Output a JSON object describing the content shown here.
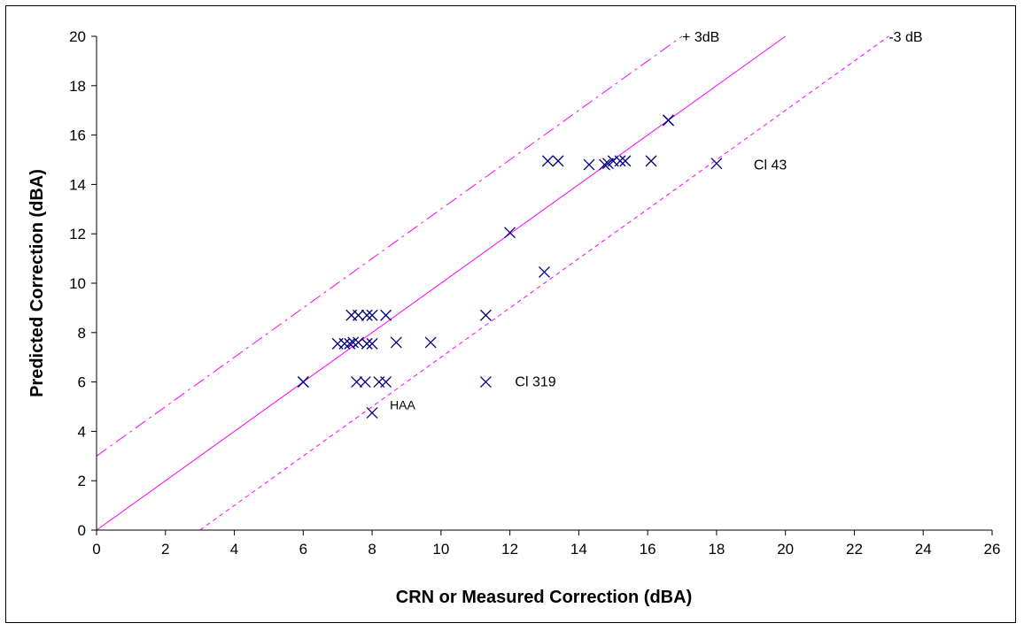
{
  "chart_data": {
    "type": "scatter",
    "title": "",
    "xlabel": "CRN or Measured Correction  (dBA)",
    "ylabel": "Predicted Correction  (dBA)",
    "xlim": [
      0,
      26
    ],
    "ylim": [
      0,
      20
    ],
    "xticks": [
      0,
      2,
      4,
      6,
      8,
      10,
      12,
      14,
      16,
      18,
      20,
      22,
      24,
      26
    ],
    "yticks": [
      0,
      2,
      4,
      6,
      8,
      10,
      12,
      14,
      16,
      18,
      20
    ],
    "grid": false,
    "legend": "none",
    "marker_color": "#000080",
    "line_color": "#ff00ff",
    "points": [
      {
        "x": 6.0,
        "y": 6.0
      },
      {
        "x": 6.0,
        "y": 6.0
      },
      {
        "x": 7.0,
        "y": 7.55
      },
      {
        "x": 7.2,
        "y": 7.55
      },
      {
        "x": 7.35,
        "y": 7.55
      },
      {
        "x": 7.45,
        "y": 7.6
      },
      {
        "x": 7.6,
        "y": 7.6
      },
      {
        "x": 7.85,
        "y": 7.55
      },
      {
        "x": 8.0,
        "y": 7.55
      },
      {
        "x": 8.7,
        "y": 7.6
      },
      {
        "x": 9.7,
        "y": 7.6
      },
      {
        "x": 7.4,
        "y": 8.7
      },
      {
        "x": 7.6,
        "y": 8.7
      },
      {
        "x": 7.85,
        "y": 8.7
      },
      {
        "x": 8.0,
        "y": 8.7
      },
      {
        "x": 8.4,
        "y": 8.7
      },
      {
        "x": 11.3,
        "y": 8.7
      },
      {
        "x": 7.55,
        "y": 6.0
      },
      {
        "x": 7.8,
        "y": 6.0
      },
      {
        "x": 8.2,
        "y": 6.0
      },
      {
        "x": 8.4,
        "y": 6.0
      },
      {
        "x": 11.3,
        "y": 6.0
      },
      {
        "x": 8.0,
        "y": 4.75
      },
      {
        "x": 12.0,
        "y": 12.05
      },
      {
        "x": 13.0,
        "y": 10.45
      },
      {
        "x": 13.1,
        "y": 14.95
      },
      {
        "x": 13.4,
        "y": 14.95
      },
      {
        "x": 14.3,
        "y": 14.8
      },
      {
        "x": 14.75,
        "y": 14.8
      },
      {
        "x": 14.85,
        "y": 14.85
      },
      {
        "x": 15.0,
        "y": 14.95
      },
      {
        "x": 15.2,
        "y": 14.95
      },
      {
        "x": 15.35,
        "y": 14.95
      },
      {
        "x": 16.1,
        "y": 14.95
      },
      {
        "x": 16.6,
        "y": 16.6
      },
      {
        "x": 16.6,
        "y": 16.6
      },
      {
        "x": 18.0,
        "y": 14.85
      }
    ],
    "lines": [
      {
        "style": "solid",
        "from": [
          0,
          0
        ],
        "to": [
          20,
          20
        ]
      },
      {
        "style": "dash-dot",
        "label": "+ 3dB",
        "from": [
          0,
          3
        ],
        "to": [
          17,
          20
        ]
      },
      {
        "style": "dotted",
        "label": "-3 dB",
        "from": [
          3,
          0
        ],
        "to": [
          23,
          20
        ]
      }
    ],
    "annotations": [
      {
        "text": "Cl 43",
        "x": 18.0,
        "y": 14.85
      },
      {
        "text": "Cl 319",
        "x": 11.3,
        "y": 6.0
      },
      {
        "text": "HAA",
        "x": 8.0,
        "y": 4.75
      }
    ]
  }
}
